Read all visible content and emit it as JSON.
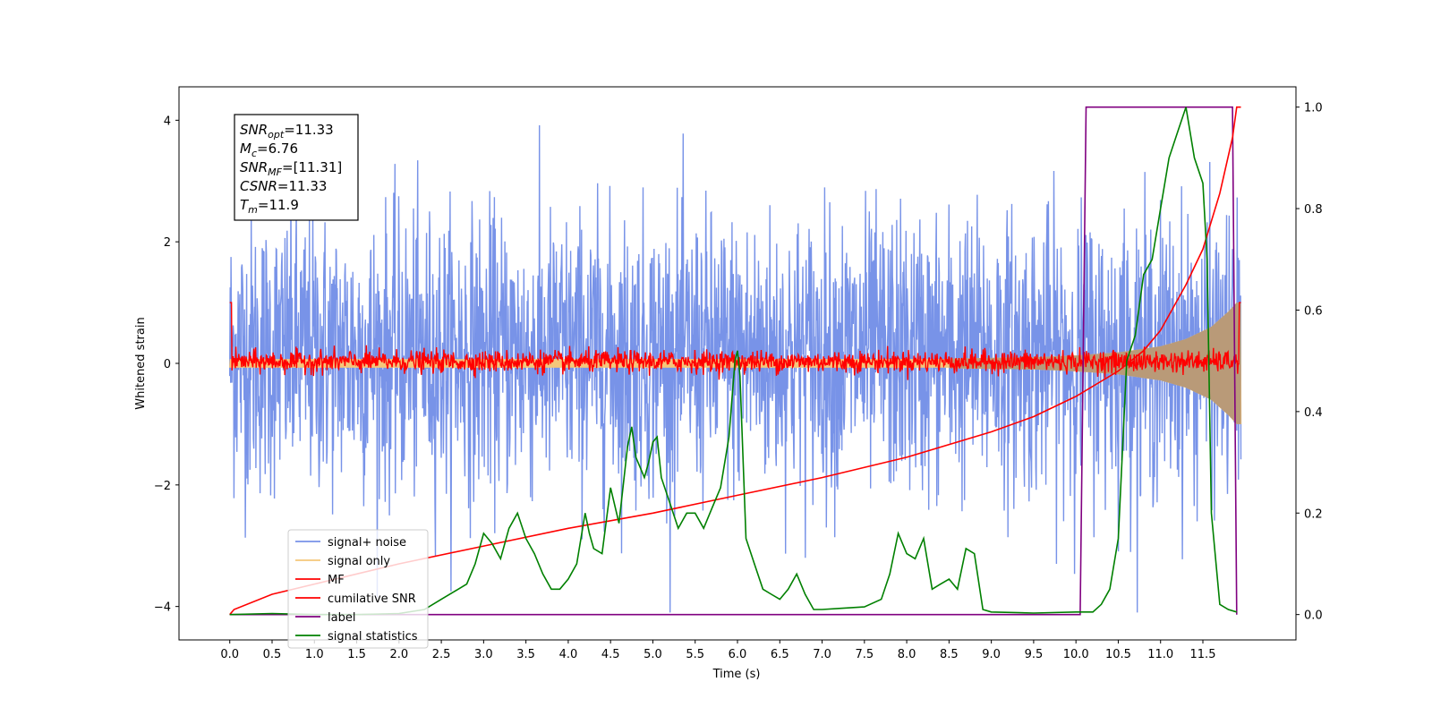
{
  "chart_data": {
    "type": "line",
    "xlabel": "Time (s)",
    "ylabel": "Whitened strain",
    "xlim": [
      -0.6,
      12.6
    ],
    "ylim": [
      -4.55,
      4.55
    ],
    "y2lim": [
      -0.05,
      1.04
    ],
    "x_ticks": [
      "0.0",
      "0.5",
      "1.0",
      "1.5",
      "2.0",
      "2.5",
      "3.0",
      "3.5",
      "4.0",
      "4.5",
      "5.0",
      "5.5",
      "6.0",
      "6.5",
      "7.0",
      "7.5",
      "8.0",
      "8.5",
      "9.0",
      "9.5",
      "10.0",
      "10.5",
      "11.0",
      "11.5"
    ],
    "y_ticks": [
      "4",
      "2",
      "0",
      "−2",
      "−4"
    ],
    "y2_ticks": [
      "1.0",
      "0.8",
      "0.6",
      "0.4",
      "0.2",
      "0.0"
    ],
    "grid": false,
    "legend_position": "lower-left",
    "info_box": {
      "lines": [
        {
          "var": "SNR",
          "sub": "opt",
          "value": "=11.33"
        },
        {
          "var": "M",
          "sub": "c",
          "value": "=6.76"
        },
        {
          "var": "SNR",
          "sub": "MF",
          "value": "=[11.31]"
        },
        {
          "var": "CSNR",
          "sub": "",
          "value": "=11.33"
        },
        {
          "var": "T",
          "sub": "m",
          "value": "=11.9"
        }
      ]
    },
    "series": [
      {
        "name": "signal+ noise",
        "color": "#7893e8",
        "axis": "left",
        "description_level": "white noise, amplitude ~±3 to ±4",
        "x_range": [
          0.0,
          11.95
        ]
      },
      {
        "name": "signal only",
        "color": "#f5c77a",
        "axis": "left",
        "x_range": [
          0.0,
          11.95
        ],
        "envelope": {
          "x": [
            8.5,
            9.0,
            9.5,
            10.0,
            10.5,
            11.0,
            11.3,
            11.6,
            11.8,
            11.9
          ],
          "amp": [
            0.08,
            0.09,
            0.1,
            0.13,
            0.18,
            0.28,
            0.4,
            0.6,
            0.85,
            1.0
          ]
        }
      },
      {
        "name": "MF",
        "color": "#ff0000",
        "axis": "left",
        "x_range": [
          0.0,
          11.95
        ]
      },
      {
        "name": "cumilative SNR",
        "color": "#ff0000",
        "axis": "right",
        "x": [
          0.0,
          0.05,
          0.5,
          1.0,
          2.0,
          3.0,
          4.0,
          5.0,
          6.0,
          7.0,
          8.0,
          9.0,
          9.5,
          10.0,
          10.5,
          10.8,
          11.0,
          11.3,
          11.5,
          11.7,
          11.85,
          11.9,
          11.95
        ],
        "values": [
          0.0,
          0.01,
          0.04,
          0.06,
          0.1,
          0.135,
          0.17,
          0.2,
          0.235,
          0.27,
          0.31,
          0.36,
          0.39,
          0.43,
          0.48,
          0.52,
          0.56,
          0.65,
          0.72,
          0.83,
          0.94,
          1.0,
          1.0
        ]
      },
      {
        "name": "label",
        "color": "#800080",
        "axis": "right",
        "x": [
          0.0,
          10.05,
          10.12,
          11.85,
          11.9
        ],
        "values": [
          0.0,
          0.0,
          1.0,
          1.0,
          0.0
        ]
      },
      {
        "name": "signal statistics",
        "color": "#008000",
        "axis": "right",
        "x": [
          0.0,
          0.5,
          1.0,
          1.5,
          2.0,
          2.3,
          2.5,
          2.7,
          2.8,
          2.9,
          3.0,
          3.1,
          3.2,
          3.3,
          3.4,
          3.5,
          3.6,
          3.7,
          3.8,
          3.9,
          4.0,
          4.1,
          4.15,
          4.2,
          4.25,
          4.3,
          4.4,
          4.5,
          4.6,
          4.7,
          4.75,
          4.8,
          4.9,
          4.95,
          5.0,
          5.05,
          5.1,
          5.2,
          5.3,
          5.4,
          5.5,
          5.6,
          5.7,
          5.8,
          5.9,
          5.97,
          6.0,
          6.03,
          6.1,
          6.2,
          6.3,
          6.4,
          6.5,
          6.6,
          6.7,
          6.8,
          6.9,
          7.0,
          7.2,
          7.5,
          7.7,
          7.8,
          7.9,
          8.0,
          8.1,
          8.2,
          8.3,
          8.4,
          8.5,
          8.6,
          8.7,
          8.8,
          8.9,
          9.0,
          9.5,
          10.0,
          10.2,
          10.3,
          10.4,
          10.5,
          10.6,
          10.7,
          10.8,
          10.9,
          11.0,
          11.1,
          11.2,
          11.3,
          11.4,
          11.5,
          11.55,
          11.6,
          11.7,
          11.8,
          11.9
        ],
        "values": [
          0.0,
          0.002,
          0.0,
          0.0,
          0.002,
          0.01,
          0.03,
          0.05,
          0.06,
          0.1,
          0.16,
          0.14,
          0.11,
          0.17,
          0.2,
          0.15,
          0.12,
          0.08,
          0.05,
          0.05,
          0.07,
          0.1,
          0.15,
          0.2,
          0.16,
          0.13,
          0.12,
          0.25,
          0.18,
          0.33,
          0.37,
          0.31,
          0.27,
          0.3,
          0.34,
          0.35,
          0.27,
          0.22,
          0.17,
          0.2,
          0.2,
          0.17,
          0.21,
          0.25,
          0.35,
          0.5,
          0.52,
          0.47,
          0.15,
          0.1,
          0.05,
          0.04,
          0.03,
          0.05,
          0.08,
          0.04,
          0.01,
          0.01,
          0.012,
          0.015,
          0.03,
          0.08,
          0.16,
          0.12,
          0.11,
          0.15,
          0.05,
          0.06,
          0.07,
          0.05,
          0.13,
          0.12,
          0.01,
          0.005,
          0.003,
          0.005,
          0.005,
          0.02,
          0.05,
          0.15,
          0.5,
          0.55,
          0.67,
          0.7,
          0.8,
          0.9,
          0.95,
          1.0,
          0.9,
          0.85,
          0.7,
          0.2,
          0.02,
          0.01,
          0.005
        ]
      }
    ]
  }
}
